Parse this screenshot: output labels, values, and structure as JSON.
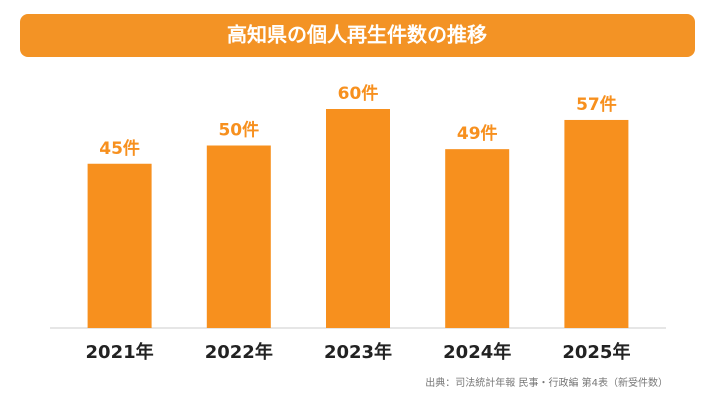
{
  "chart_data": {
    "type": "bar",
    "title": "高知県の個人再生件数の推移",
    "categories": [
      "2021年",
      "2022年",
      "2023年",
      "2024年",
      "2025年"
    ],
    "values": [
      45,
      50,
      60,
      49,
      57
    ],
    "value_labels": [
      "45件",
      "50件",
      "60件",
      "49件",
      "57件"
    ],
    "color": "#f7901e",
    "source": "出典：司法統計年報 民事・行政編 第4表（新受件数）"
  }
}
